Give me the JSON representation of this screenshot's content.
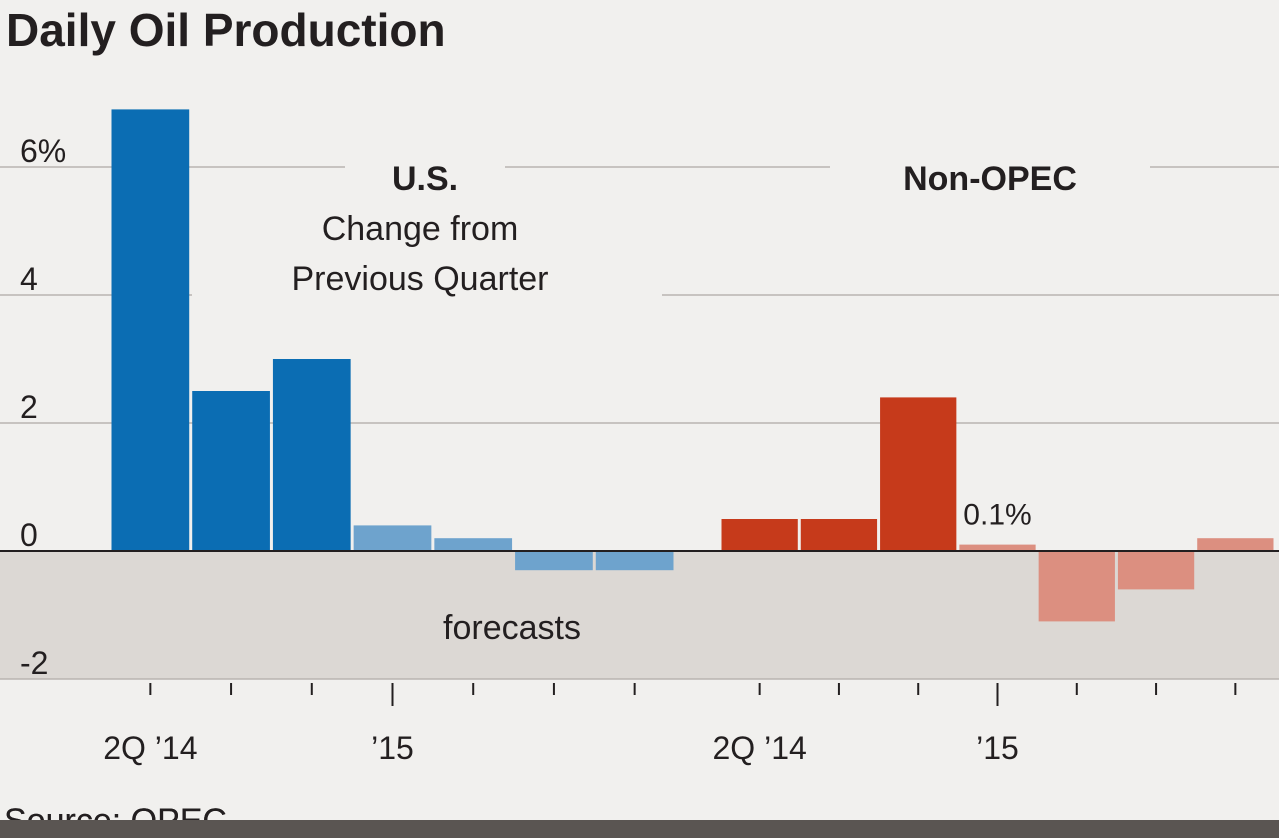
{
  "title": "Daily Oil Production",
  "source": "Source: OPEC",
  "chart_data": [
    {
      "type": "bar",
      "title": "U.S.",
      "subtitle": [
        "Change from",
        "Previous Quarter"
      ],
      "annotation": "forecasts",
      "categories": [
        "2Q ’14",
        null,
        null,
        "’15",
        null,
        null,
        null
      ],
      "values": [
        6.9,
        2.5,
        3.0,
        0.4,
        0.2,
        -0.3,
        -0.3
      ],
      "colors": [
        "#0b6db3",
        "#0b6db3",
        "#0b6db3",
        "#6ea3cd",
        "#6ea3cd",
        "#6ea3cd",
        "#6ea3cd"
      ],
      "ylim": [
        -2,
        7.5
      ],
      "yticks": [
        -2,
        0,
        2,
        4,
        {
          "value": 6,
          "label": "6%"
        }
      ],
      "grid": true
    },
    {
      "type": "bar",
      "title": "Non-OPEC",
      "categories": [
        "2Q ’14",
        null,
        null,
        "’15",
        null,
        null,
        null
      ],
      "values": [
        0.5,
        0.5,
        2.4,
        0.1,
        -1.1,
        -0.6,
        0.2
      ],
      "value_labels": [
        null,
        null,
        null,
        "0.1%",
        null,
        null,
        null
      ],
      "colors": [
        "#c63a1b",
        "#c63a1b",
        "#c63a1b",
        "#dc8f80",
        "#dc8f80",
        "#dc8f80",
        "#dc8f80"
      ],
      "ylim": [
        -2,
        7.5
      ]
    }
  ]
}
